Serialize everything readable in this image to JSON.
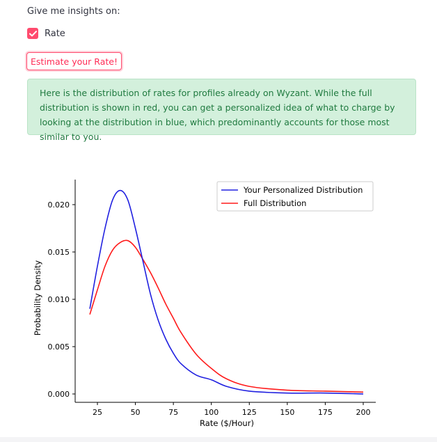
{
  "prompt": "Give me insights on:",
  "checkbox": {
    "label": "Rate",
    "checked": true
  },
  "button": {
    "label": "Estimate your Rate!"
  },
  "alert": {
    "text": "Here is the distribution of rates for profiles already on Wyzant. While the full distribution is shown in red, you can get a personalized idea of what to charge by looking at the distribution in blue, which predominantly accounts for those most similar to you."
  },
  "colors": {
    "accent": "#ff4b6e",
    "alert_bg": "#d3f0dc",
    "alert_text": "#1f7a3f",
    "personalized": "#2020e0",
    "full": "#ff1a1a"
  },
  "chart_data": {
    "type": "line",
    "xlabel": "Rate ($/Hour)",
    "ylabel": "Probability Density",
    "xlim": [
      20,
      200
    ],
    "ylim": [
      0,
      0.0225
    ],
    "x_ticks": [
      25,
      50,
      75,
      100,
      125,
      150,
      175,
      200
    ],
    "y_ticks": [
      0.0,
      0.005,
      0.01,
      0.015,
      0.02
    ],
    "y_tick_labels": [
      "0.000",
      "0.005",
      "0.010",
      "0.015",
      "0.020"
    ],
    "legend_position": "top-right",
    "grid": false,
    "series": [
      {
        "name": "Your Personalized Distribution",
        "color": "#2020e0",
        "x": [
          20,
          25,
          30,
          35,
          40,
          45,
          50,
          55,
          60,
          65,
          70,
          75,
          80,
          90,
          100,
          110,
          125,
          150,
          175,
          200
        ],
        "y": [
          0.009,
          0.0135,
          0.0175,
          0.0205,
          0.0215,
          0.0205,
          0.0175,
          0.014,
          0.0105,
          0.0078,
          0.0058,
          0.0043,
          0.0032,
          0.002,
          0.0015,
          0.0008,
          0.0003,
          0.0001,
          0.0001,
          0.0
        ]
      },
      {
        "name": "Full Distribution",
        "color": "#ff1a1a",
        "x": [
          20,
          25,
          30,
          35,
          40,
          45,
          50,
          55,
          60,
          65,
          70,
          75,
          80,
          90,
          100,
          110,
          125,
          150,
          175,
          200
        ],
        "y": [
          0.0084,
          0.011,
          0.0135,
          0.0152,
          0.016,
          0.0162,
          0.0155,
          0.0142,
          0.0128,
          0.0112,
          0.0095,
          0.008,
          0.0065,
          0.0042,
          0.0027,
          0.0016,
          0.0008,
          0.0004,
          0.0003,
          0.0002
        ]
      }
    ]
  }
}
